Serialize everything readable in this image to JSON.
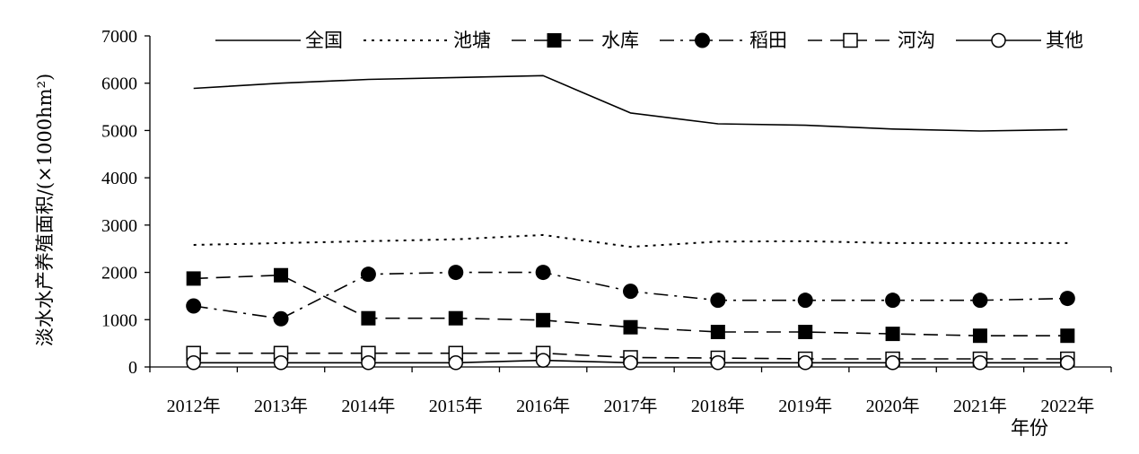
{
  "chart_data": {
    "type": "line",
    "title": "",
    "xlabel": "年份",
    "ylabel": "淡水水产养殖面积/(×1000hm²)",
    "categories": [
      "2012年",
      "2013年",
      "2014年",
      "2015年",
      "2016年",
      "2017年",
      "2018年",
      "2019年",
      "2020年",
      "2021年",
      "2022年"
    ],
    "ylim": [
      0,
      7000
    ],
    "yticks": [
      "0",
      "1000",
      "2000",
      "3000",
      "4000",
      "5000",
      "6000",
      "7000"
    ],
    "grid": false,
    "legend_position": "top",
    "series": [
      {
        "name": "全国",
        "marker": "none",
        "dash": "solid",
        "values": [
          5890,
          6000,
          6080,
          6120,
          6160,
          5370,
          5140,
          5110,
          5030,
          4990,
          5020
        ]
      },
      {
        "name": "池塘",
        "marker": "none",
        "dash": "dotted",
        "values": [
          2580,
          2620,
          2660,
          2700,
          2790,
          2540,
          2650,
          2660,
          2620,
          2620,
          2620
        ]
      },
      {
        "name": "水库",
        "marker": "filled-square",
        "dash": "dashed",
        "values": [
          1870,
          1940,
          1030,
          1030,
          990,
          840,
          740,
          740,
          700,
          660,
          660
        ]
      },
      {
        "name": "稻田",
        "marker": "filled-circle",
        "dash": "dashdot",
        "values": [
          1290,
          1020,
          1960,
          2000,
          2000,
          1600,
          1410,
          1410,
          1410,
          1410,
          1450
        ]
      },
      {
        "name": "河沟",
        "marker": "open-square",
        "dash": "dashed",
        "values": [
          290,
          290,
          290,
          290,
          290,
          200,
          190,
          170,
          170,
          170,
          170
        ]
      },
      {
        "name": "其他",
        "marker": "open-circle",
        "dash": "solid",
        "values": [
          90,
          90,
          90,
          90,
          140,
          90,
          90,
          90,
          90,
          90,
          90
        ]
      }
    ]
  }
}
